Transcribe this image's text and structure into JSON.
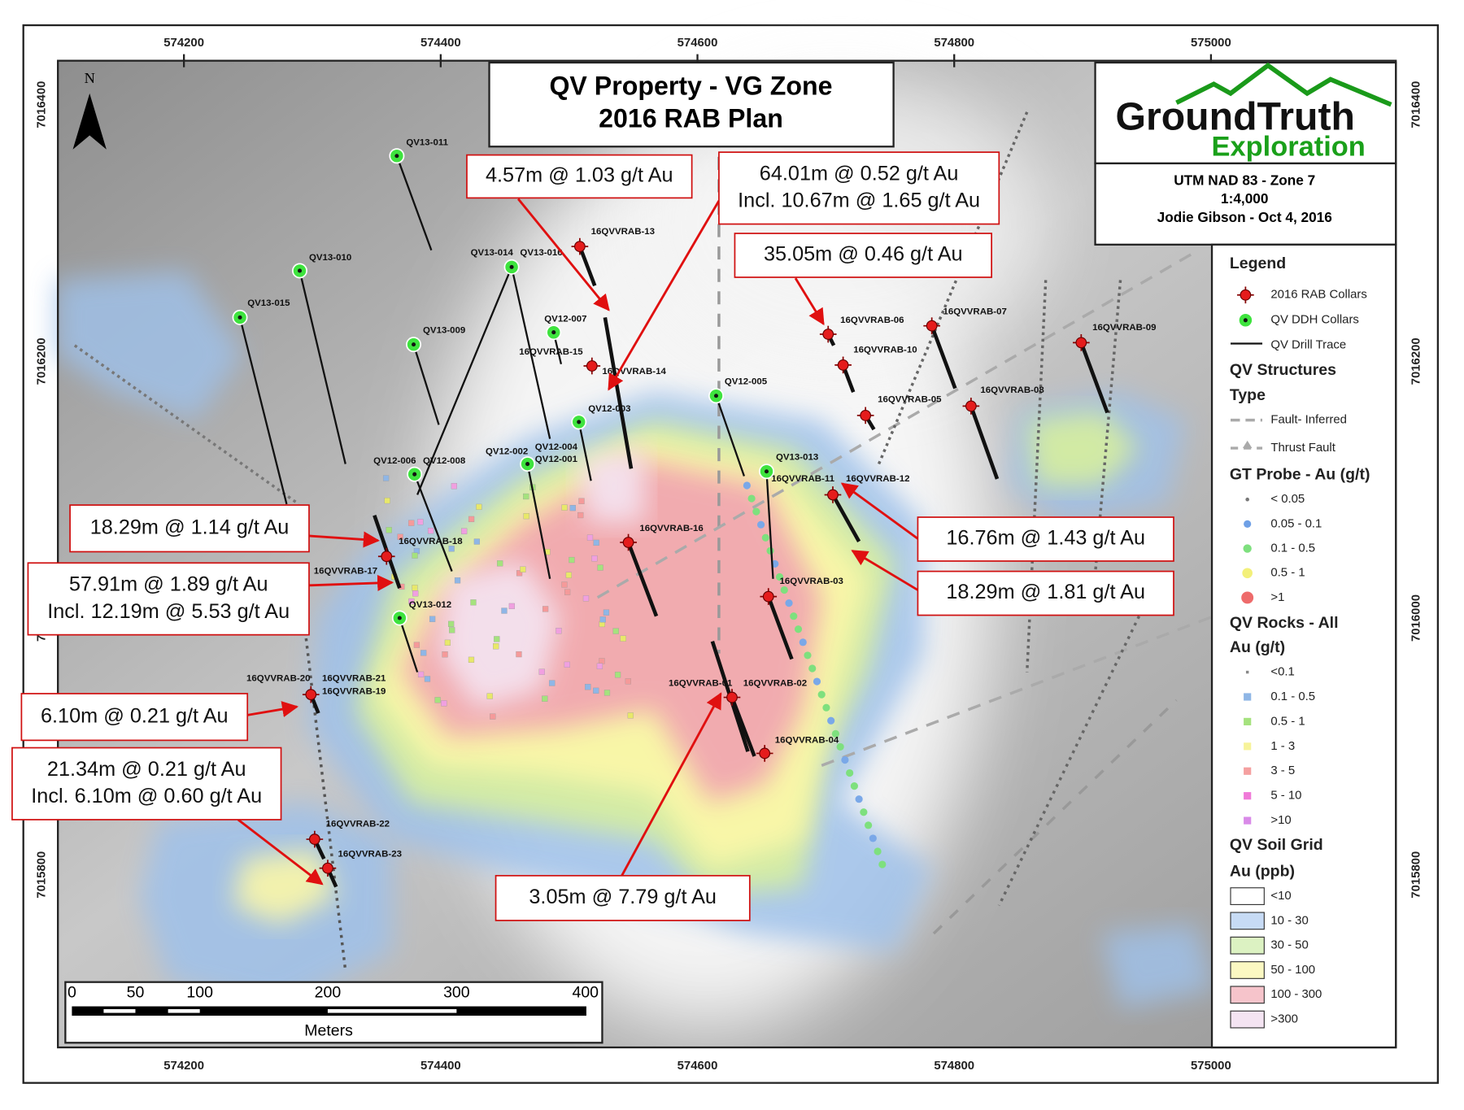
{
  "title": {
    "line1": "QV Property - VG Zone",
    "line2": "2016 RAB Plan"
  },
  "logo": {
    "name": "GroundTruth",
    "sub": "Exploration"
  },
  "info": [
    "UTM NAD 83 - Zone 7",
    "1:4,000",
    "Jodie Gibson - Oct 4, 2016"
  ],
  "north": "N",
  "grid": {
    "eastings": [
      "574200",
      "574400",
      "574600",
      "574800",
      "575000"
    ],
    "northings": [
      "7016400",
      "7016200",
      "7016000",
      "7015800"
    ]
  },
  "rab_collars": [
    "16QVVRAB-13",
    "16QVVRAB-15",
    "16QVVRAB-14",
    "16QVVRAB-16",
    "16QVVRAB-18",
    "16QVVRAB-17",
    "16QVVRAB-20",
    "16QVVRAB-21",
    "16QVVRAB-19",
    "16QVVRAB-22",
    "16QVVRAB-23",
    "16QVVRAB-01",
    "16QVVRAB-02",
    "16QVVRAB-03",
    "16QVVRAB-04",
    "16QVVRAB-11",
    "16QVVRAB-12",
    "16QVVRAB-06",
    "16QVVRAB-10",
    "16QVVRAB-05",
    "16QVVRAB-07",
    "16QVVRAB-08",
    "16QVVRAB-09"
  ],
  "ddh_collars": [
    "QV13-011",
    "QV13-010",
    "QV13-015",
    "QV13-009",
    "QV13-014",
    "QV13-016",
    "QV12-007",
    "QV12-005",
    "QV12-003",
    "QV12-006",
    "QV12-008",
    "QV12-002",
    "QV12-004",
    "QV12-001",
    "QV13-013",
    "QV13-012"
  ],
  "callouts": [
    {
      "lines": [
        "4.57m @ 1.03 g/t Au"
      ]
    },
    {
      "lines": [
        "64.01m @ 0.52 g/t Au",
        "Incl. 10.67m @ 1.65 g/t Au"
      ]
    },
    {
      "lines": [
        "35.05m @ 0.46 g/t Au"
      ]
    },
    {
      "lines": [
        "18.29m @ 1.14 g/t Au"
      ]
    },
    {
      "lines": [
        "57.91m @ 1.89 g/t Au",
        "Incl. 12.19m @ 5.53 g/t Au"
      ]
    },
    {
      "lines": [
        "6.10m @ 0.21 g/t Au"
      ]
    },
    {
      "lines": [
        "21.34m @ 0.21 g/t Au",
        "Incl. 6.10m @ 0.60 g/t Au"
      ]
    },
    {
      "lines": [
        "16.76m @ 1.43 g/t Au"
      ]
    },
    {
      "lines": [
        "18.29m @ 1.81 g/t Au"
      ]
    },
    {
      "lines": [
        "3.05m @ 7.79 g/t Au"
      ]
    }
  ],
  "legend": {
    "title": "Legend",
    "symbols": [
      "2016 RAB Collars",
      "QV DDH Collars",
      "QV Drill Trace"
    ],
    "structures": {
      "title": "QV Structures",
      "subtitle": "Type",
      "items": [
        "Fault- Inferred",
        "Thrust Fault"
      ]
    },
    "probe": {
      "title": "GT Probe - Au (g/t)",
      "items": [
        "< 0.05",
        "0.05 - 0.1",
        "0.1 - 0.5",
        "0.5 - 1",
        ">1"
      ]
    },
    "rocks": {
      "title": "QV Rocks - All",
      "subtitle": "Au (g/t)",
      "items": [
        "<0.1",
        "0.1 - 0.5",
        "0.5 - 1",
        "1 - 3",
        "3 - 5",
        "5 - 10",
        ">10"
      ]
    },
    "soil": {
      "title": "QV Soil Grid",
      "subtitle": "Au (ppb)",
      "items": [
        "<10",
        "10 - 30",
        "30 - 50",
        "50 - 100",
        "100 - 300",
        ">300"
      ]
    }
  },
  "scale_bar": {
    "ticks": [
      "0",
      "50",
      "100",
      "200",
      "300",
      "400"
    ],
    "unit": "Meters"
  }
}
